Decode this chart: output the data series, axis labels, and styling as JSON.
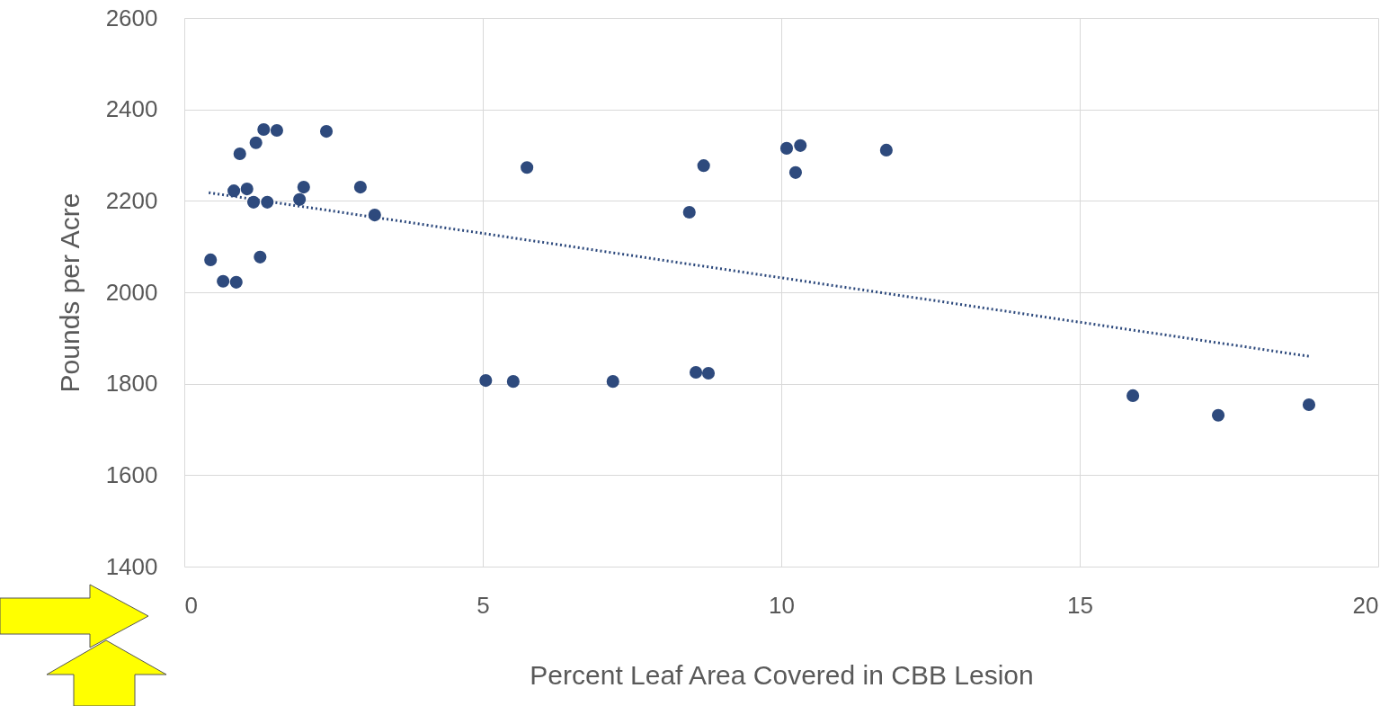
{
  "chart_data": {
    "type": "scatter",
    "xlabel": "Percent Leaf Area Covered in CBB Lesion",
    "ylabel": "Pounds per Acre",
    "xlim": [
      0,
      20
    ],
    "xticks": [
      0,
      5,
      10,
      15,
      20
    ],
    "ylim": [
      1400,
      2600
    ],
    "yticks": [
      1400,
      1600,
      1800,
      2000,
      2200,
      2400,
      2600
    ],
    "grid": true,
    "series": [
      {
        "type": "scatter",
        "marker": "circle",
        "color": "#2e4a7d",
        "x": [
          0.44,
          0.65,
          0.87,
          0.83,
          0.93,
          1.05,
          1.16,
          1.2,
          1.27,
          1.33,
          1.39,
          1.55,
          1.93,
          2.0,
          2.38,
          2.95,
          3.19,
          5.05,
          5.51,
          5.74,
          7.18,
          8.46,
          8.57,
          8.7,
          8.78,
          10.09,
          10.24,
          10.32,
          11.76,
          15.89,
          17.32,
          18.84
        ],
        "values": [
          2071,
          2024,
          2022,
          2222,
          2303,
          2226,
          2197,
          2327,
          2077,
          2356,
          2197,
          2354,
          2203,
          2230,
          2352,
          2230,
          2169,
          1807,
          1805,
          2273,
          1805,
          2175,
          1825,
          2277,
          1823,
          2315,
          2262,
          2321,
          2311,
          1774,
          1731,
          1754
        ]
      },
      {
        "type": "line",
        "color": "#2e4a7d",
        "line_style": "dotted",
        "x": [
          0.41,
          18.84
        ],
        "values": [
          2218,
          1860
        ]
      }
    ]
  }
}
